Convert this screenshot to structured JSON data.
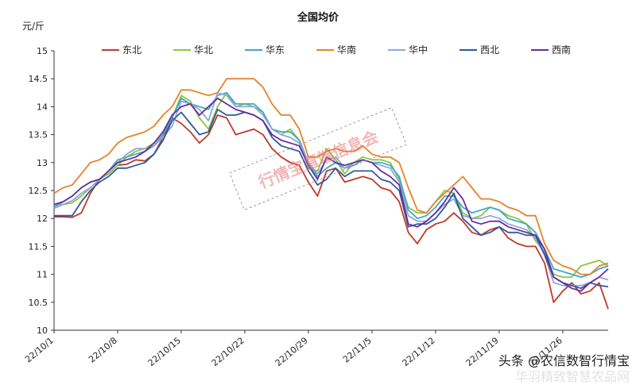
{
  "chart_data": {
    "type": "line",
    "title": "全国均价",
    "ylabel": "元/斤",
    "xlabel": "",
    "ylim": [
      10,
      15
    ],
    "yticks": [
      10,
      10.5,
      11,
      11.5,
      12,
      12.5,
      13,
      13.5,
      14,
      14.5,
      15
    ],
    "x_tick_labels": [
      "22/10/1",
      "22/10/8",
      "22/10/15",
      "22/10/22",
      "22/10/29",
      "22/11/5",
      "22/11/12",
      "22/11/19",
      "22/11/26"
    ],
    "x": [
      "22/10/1",
      "22/10/2",
      "22/10/3",
      "22/10/4",
      "22/10/5",
      "22/10/6",
      "22/10/7",
      "22/10/8",
      "22/10/9",
      "22/10/10",
      "22/10/11",
      "22/10/12",
      "22/10/13",
      "22/10/14",
      "22/10/15",
      "22/10/16",
      "22/10/17",
      "22/10/18",
      "22/10/19",
      "22/10/20",
      "22/10/21",
      "22/10/22",
      "22/10/23",
      "22/10/24",
      "22/10/25",
      "22/10/26",
      "22/10/27",
      "22/10/28",
      "22/10/29",
      "22/10/30",
      "22/10/31",
      "22/11/1",
      "22/11/2",
      "22/11/3",
      "22/11/4",
      "22/11/5",
      "22/11/6",
      "22/11/7",
      "22/11/8",
      "22/11/9",
      "22/11/10",
      "22/11/11",
      "22/11/12",
      "22/11/13",
      "22/11/14",
      "22/11/15",
      "22/11/16",
      "22/11/17",
      "22/11/18",
      "22/11/19",
      "22/11/20",
      "22/11/21",
      "22/11/22",
      "22/11/23",
      "22/11/24",
      "22/11/25",
      "22/11/26",
      "22/11/27",
      "22/11/28",
      "22/11/29",
      "22/11/30",
      "22/12/1"
    ],
    "legend_position": "top",
    "grid": false,
    "series": [
      {
        "name": "东北",
        "color": "#c0392b",
        "values": [
          12.03,
          12.03,
          12.02,
          12.1,
          12.45,
          12.7,
          12.8,
          12.95,
          12.97,
          13.05,
          13.03,
          13.15,
          13.45,
          13.8,
          13.7,
          13.55,
          13.35,
          13.5,
          13.85,
          13.8,
          13.5,
          13.55,
          13.6,
          13.5,
          13.25,
          13.1,
          13.0,
          12.95,
          12.65,
          12.4,
          12.85,
          12.9,
          12.65,
          12.7,
          12.75,
          12.7,
          12.55,
          12.5,
          12.3,
          11.75,
          11.55,
          11.8,
          11.9,
          11.95,
          12.1,
          11.95,
          11.75,
          11.7,
          11.8,
          11.85,
          11.65,
          11.55,
          11.5,
          11.5,
          11.2,
          10.5,
          10.7,
          10.85,
          10.65,
          10.7,
          10.85,
          10.38
        ]
      },
      {
        "name": "华北",
        "color": "#8dc63f",
        "values": [
          12.25,
          12.25,
          12.28,
          12.4,
          12.55,
          12.7,
          12.8,
          12.95,
          13.1,
          13.2,
          13.25,
          13.35,
          13.55,
          13.8,
          14.2,
          14.1,
          13.8,
          13.6,
          14.0,
          14.25,
          14.0,
          14.05,
          14.0,
          13.9,
          13.6,
          13.5,
          13.6,
          13.4,
          12.9,
          12.85,
          13.25,
          13.05,
          12.8,
          13.0,
          13.1,
          13.05,
          13.05,
          13.0,
          12.7,
          12.2,
          12.1,
          12.1,
          12.3,
          12.5,
          12.45,
          12.1,
          12.0,
          12.05,
          12.2,
          12.15,
          12.05,
          12.0,
          11.9,
          11.6,
          11.4,
          11.0,
          10.95,
          10.95,
          11.15,
          11.2,
          11.25,
          11.15
        ]
      },
      {
        "name": "华东",
        "color": "#3fa9c9",
        "values": [
          12.2,
          12.3,
          12.4,
          12.55,
          12.65,
          12.7,
          12.85,
          13.05,
          13.1,
          13.15,
          13.2,
          13.3,
          13.5,
          13.8,
          14.15,
          14.05,
          14.0,
          13.95,
          14.2,
          14.25,
          14.05,
          14.05,
          14.05,
          13.9,
          13.6,
          13.55,
          13.55,
          13.4,
          13.0,
          12.75,
          12.9,
          13.0,
          12.9,
          12.95,
          13.05,
          13.0,
          13.0,
          12.95,
          12.75,
          12.15,
          12.0,
          12.05,
          12.2,
          12.4,
          12.4,
          12.2,
          12.1,
          12.15,
          12.2,
          12.15,
          12.0,
          11.95,
          11.9,
          11.75,
          11.45,
          11.1,
          11.05,
          11.0,
          10.95,
          11.0,
          11.1,
          11.15
        ]
      },
      {
        "name": "华南",
        "color": "#e8832a",
        "values": [
          12.45,
          12.55,
          12.6,
          12.8,
          13.0,
          13.05,
          13.15,
          13.35,
          13.45,
          13.5,
          13.55,
          13.65,
          13.85,
          14.0,
          14.3,
          14.3,
          14.25,
          14.2,
          14.25,
          14.5,
          14.5,
          14.5,
          14.5,
          14.35,
          14.05,
          13.85,
          13.85,
          13.6,
          13.1,
          13.1,
          13.2,
          13.25,
          13.2,
          13.2,
          13.3,
          13.15,
          13.1,
          13.1,
          13.0,
          12.55,
          12.15,
          12.1,
          12.3,
          12.45,
          12.6,
          12.75,
          12.55,
          12.35,
          12.35,
          12.3,
          12.2,
          12.15,
          12.05,
          12.05,
          11.55,
          11.25,
          11.15,
          11.1,
          11.0,
          11.0,
          11.15,
          11.2
        ]
      },
      {
        "name": "华中",
        "color": "#8fa8d8",
        "values": [
          12.18,
          12.25,
          12.32,
          12.45,
          12.55,
          12.7,
          12.85,
          13.0,
          13.15,
          13.25,
          13.25,
          13.3,
          13.45,
          13.65,
          14.1,
          14.05,
          13.95,
          13.75,
          14.25,
          14.2,
          14.0,
          14.0,
          14.0,
          13.85,
          13.6,
          13.5,
          13.45,
          13.35,
          13.0,
          12.8,
          13.05,
          13.1,
          12.9,
          13.0,
          13.05,
          13.0,
          12.95,
          12.9,
          12.65,
          12.05,
          11.95,
          11.95,
          12.1,
          12.25,
          12.35,
          12.05,
          12.0,
          12.0,
          12.05,
          12.0,
          11.9,
          11.85,
          11.8,
          11.65,
          11.35,
          10.85,
          10.8,
          10.8,
          10.8,
          10.85,
          10.95,
          10.9
        ]
      },
      {
        "name": "西北",
        "color": "#2d5aa0",
        "values": [
          12.05,
          12.05,
          12.05,
          12.3,
          12.5,
          12.65,
          12.75,
          12.9,
          12.9,
          12.95,
          13.0,
          13.15,
          13.4,
          13.75,
          13.9,
          13.7,
          13.5,
          13.55,
          13.95,
          13.85,
          13.85,
          13.9,
          13.85,
          13.75,
          13.45,
          13.3,
          13.25,
          13.2,
          12.85,
          12.6,
          12.7,
          12.9,
          12.75,
          12.85,
          12.85,
          12.85,
          12.7,
          12.65,
          12.5,
          11.85,
          11.9,
          11.9,
          12.0,
          12.2,
          12.45,
          12.0,
          11.85,
          11.7,
          11.75,
          11.85,
          11.75,
          11.75,
          11.7,
          11.7,
          11.35,
          10.95,
          10.85,
          10.8,
          10.75,
          10.85,
          10.8,
          10.78
        ]
      },
      {
        "name": "西南",
        "color": "#6a2c9e",
        "values": [
          12.25,
          12.3,
          12.4,
          12.55,
          12.65,
          12.7,
          12.85,
          13.0,
          13.05,
          13.1,
          13.2,
          13.35,
          13.55,
          13.85,
          14.0,
          14.05,
          13.85,
          14.0,
          14.15,
          14.05,
          13.95,
          13.9,
          13.85,
          13.75,
          13.5,
          13.4,
          13.35,
          13.3,
          12.95,
          12.7,
          13.1,
          13.0,
          12.95,
          13.0,
          13.05,
          13.0,
          12.85,
          12.75,
          12.6,
          11.9,
          11.85,
          11.95,
          12.1,
          12.3,
          12.55,
          12.35,
          11.95,
          11.9,
          11.95,
          11.95,
          11.85,
          11.8,
          11.75,
          11.7,
          11.45,
          10.95,
          10.85,
          10.75,
          10.7,
          10.85,
          10.95,
          11.1
        ]
      }
    ],
    "annotations": [
      "行情宝直端信息会"
    ]
  },
  "watermark": {
    "line1": "头条 @农信数智行情宝",
    "line2": "华羽精致智慧农品网"
  }
}
